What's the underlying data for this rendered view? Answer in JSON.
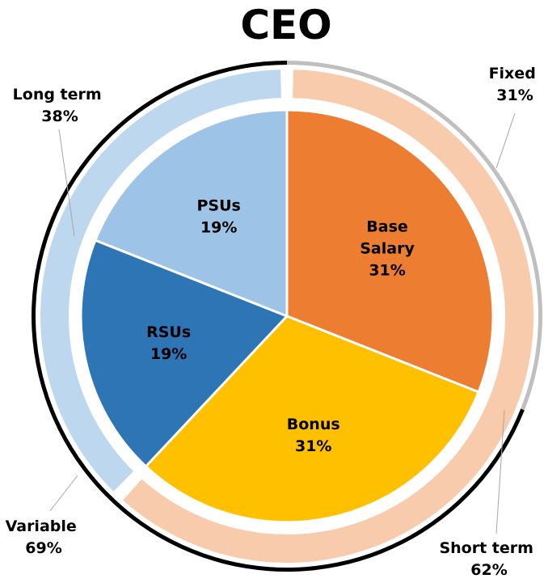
{
  "chart_data": {
    "type": "pie",
    "title": "CEO",
    "inner": [
      {
        "name": "Base Salary",
        "label_lines": [
          "Base",
          "Salary"
        ],
        "value": 31,
        "value_label": "31%",
        "color": "#ED7D31"
      },
      {
        "name": "Bonus",
        "label_lines": [
          "Bonus"
        ],
        "value": 31,
        "value_label": "31%",
        "color": "#FFC000"
      },
      {
        "name": "RSUs",
        "label_lines": [
          "RSUs"
        ],
        "value": 19,
        "value_label": "19%",
        "color": "#2E75B6"
      },
      {
        "name": "PSUs",
        "label_lines": [
          "PSUs"
        ],
        "value": 19,
        "value_label": "19%",
        "color": "#9DC3E6"
      }
    ],
    "middle_ring": [
      {
        "name": "Short term",
        "value": 62,
        "value_label": "62%",
        "color": "#F8CBAD"
      },
      {
        "name": "Long term",
        "value": 38,
        "value_label": "38%",
        "color": "#BDD7EE"
      }
    ],
    "outer_ring": [
      {
        "name": "Fixed",
        "value": 31,
        "value_label": "31%",
        "color": "#BFBFBF"
      },
      {
        "name": "Variable",
        "value": 69,
        "value_label": "69%",
        "color": "#000000"
      }
    ]
  }
}
